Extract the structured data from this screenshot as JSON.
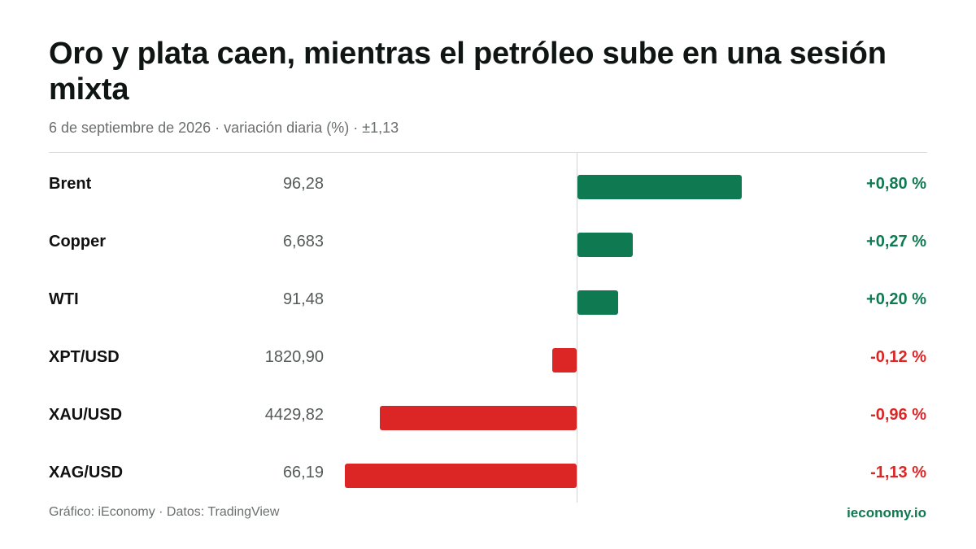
{
  "colors": {
    "positive": "#0f7a52",
    "negative": "#dc2626",
    "axis": "#d4d4d4"
  },
  "header": {
    "title": "Oro y plata caen, mientras el petróleo sube en una sesión mixta",
    "subtitle": "6 de septiembre de 2026 · variación diaria (%) · ±1,13"
  },
  "chart_data": {
    "type": "bar",
    "orientation": "horizontal",
    "title": "Oro y plata caen, mientras el petróleo sube en una sesión mixta",
    "categories": [
      "Brent",
      "Copper",
      "WTI",
      "XPT/USD",
      "XAU/USD",
      "XAG/USD"
    ],
    "prices": [
      "96,28",
      "6,683",
      "91,48",
      "1820,90",
      "4429,82",
      "66,19"
    ],
    "values": [
      0.8,
      0.27,
      0.2,
      -0.12,
      -0.96,
      -1.13
    ],
    "value_labels": [
      "+0,80 %",
      "+0,27 %",
      "+0,20 %",
      "-0,12 %",
      "-0,96 %",
      "-1,13 %"
    ],
    "xlim": [
      -1.13,
      1.13
    ],
    "grid": false,
    "legend": "none"
  },
  "footer": {
    "source": "Gráfico: iEconomy · Datos: TradingView",
    "brand": "ieconomy.io"
  }
}
